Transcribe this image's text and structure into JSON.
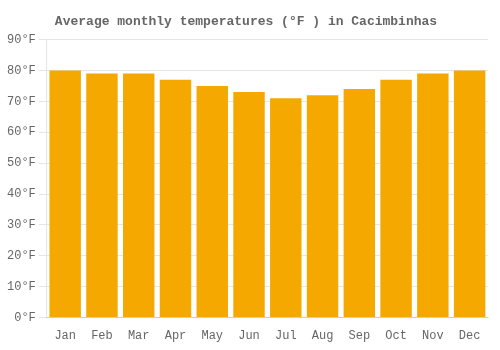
{
  "chart_data": {
    "type": "bar",
    "title": "Average monthly temperatures (°F ) in Cacimbinhas",
    "categories": [
      "Jan",
      "Feb",
      "Mar",
      "Apr",
      "May",
      "Jun",
      "Jul",
      "Aug",
      "Sep",
      "Oct",
      "Nov",
      "Dec"
    ],
    "values": [
      80,
      79,
      79,
      77,
      75,
      73,
      71,
      72,
      74,
      77,
      79,
      80
    ],
    "color": "#F5A800",
    "ylim": [
      0,
      90
    ],
    "yticks": [
      {
        "value": 0,
        "label": "0°F"
      },
      {
        "value": 10,
        "label": "10°F"
      },
      {
        "value": 20,
        "label": "20°F"
      },
      {
        "value": 30,
        "label": "30°F"
      },
      {
        "value": 40,
        "label": "40°F"
      },
      {
        "value": 50,
        "label": "50°F"
      },
      {
        "value": 60,
        "label": "60°F"
      },
      {
        "value": 70,
        "label": "70°F"
      },
      {
        "value": 80,
        "label": "80°F"
      },
      {
        "value": 90,
        "label": "90°F"
      }
    ],
    "grid": true
  }
}
